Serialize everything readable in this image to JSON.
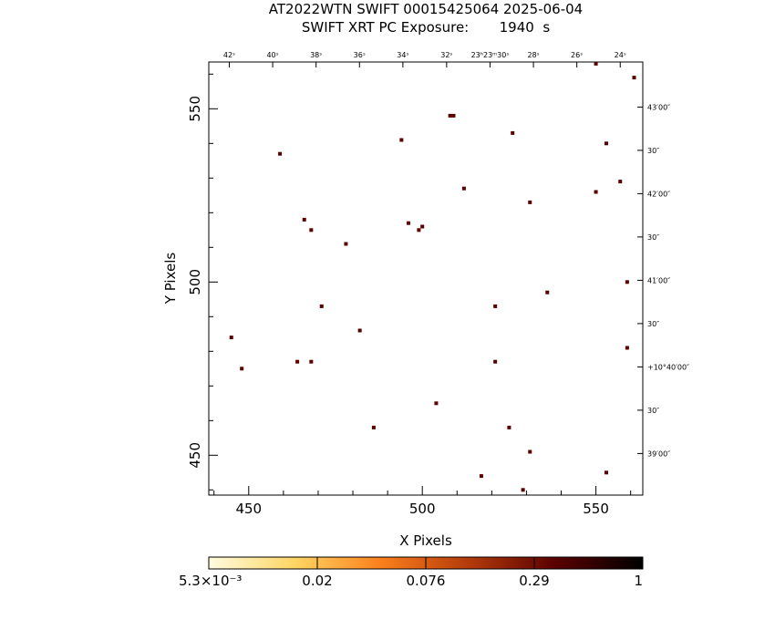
{
  "chart_data": {
    "type": "scatter",
    "title": "AT2022WTN SWIFT 00015425064 2025-06-04",
    "subtitle": "SWIFT XRT PC Exposure:       1940  s",
    "xlabel": "X Pixels",
    "ylabel": "Y Pixels",
    "xlim": [
      438.5,
      563.5
    ],
    "ylim": [
      438.5,
      563.5
    ],
    "x_ticks": [
      450,
      500,
      550
    ],
    "y_ticks": [
      450,
      500,
      550
    ],
    "x_tick_labels": [
      "450",
      "500",
      "550"
    ],
    "y_tick_labels": [
      "450",
      "500",
      "550"
    ],
    "ra_labels": [
      {
        "x": 444.4,
        "label": "42ˢ"
      },
      {
        "x": 456.9,
        "label": "40ˢ"
      },
      {
        "x": 469.4,
        "label": "38ˢ"
      },
      {
        "x": 481.9,
        "label": "36ˢ"
      },
      {
        "x": 494.4,
        "label": "34ˢ"
      },
      {
        "x": 507.0,
        "label": "32ˢ"
      },
      {
        "x": 519.5,
        "label": "23ʰ23ᵐ30ˢ"
      },
      {
        "x": 532.0,
        "label": "28ˢ"
      },
      {
        "x": 544.5,
        "label": "26ˢ"
      },
      {
        "x": 557.0,
        "label": "24ˢ"
      }
    ],
    "dec_labels": [
      {
        "y": 550.5,
        "label": "43′00″"
      },
      {
        "y": 538.0,
        "label": "30″"
      },
      {
        "y": 525.5,
        "label": "42′00″"
      },
      {
        "y": 513.0,
        "label": "30″"
      },
      {
        "y": 500.5,
        "label": "41′00″"
      },
      {
        "y": 488.0,
        "label": "30″"
      },
      {
        "y": 475.5,
        "label": "+10°40′00″"
      },
      {
        "y": 463.0,
        "label": "30″"
      },
      {
        "y": 450.5,
        "label": "39′00″"
      }
    ],
    "points": [
      {
        "x": 445,
        "y": 484
      },
      {
        "x": 448,
        "y": 475
      },
      {
        "x": 459,
        "y": 537
      },
      {
        "x": 464,
        "y": 477
      },
      {
        "x": 466,
        "y": 518
      },
      {
        "x": 468,
        "y": 515
      },
      {
        "x": 468,
        "y": 477
      },
      {
        "x": 471,
        "y": 493
      },
      {
        "x": 478,
        "y": 511
      },
      {
        "x": 482,
        "y": 486
      },
      {
        "x": 486,
        "y": 458
      },
      {
        "x": 494,
        "y": 541
      },
      {
        "x": 496,
        "y": 517
      },
      {
        "x": 499,
        "y": 515
      },
      {
        "x": 500,
        "y": 516
      },
      {
        "x": 504,
        "y": 465
      },
      {
        "x": 508,
        "y": 548
      },
      {
        "x": 509,
        "y": 548
      },
      {
        "x": 512,
        "y": 527
      },
      {
        "x": 517,
        "y": 444
      },
      {
        "x": 521,
        "y": 493
      },
      {
        "x": 521,
        "y": 477
      },
      {
        "x": 525,
        "y": 458
      },
      {
        "x": 526,
        "y": 543
      },
      {
        "x": 529,
        "y": 440
      },
      {
        "x": 531,
        "y": 523
      },
      {
        "x": 531,
        "y": 451
      },
      {
        "x": 536,
        "y": 497
      },
      {
        "x": 550,
        "y": 526
      },
      {
        "x": 550,
        "y": 563
      },
      {
        "x": 553,
        "y": 540
      },
      {
        "x": 553,
        "y": 445
      },
      {
        "x": 557,
        "y": 529
      },
      {
        "x": 559,
        "y": 500
      },
      {
        "x": 559,
        "y": 481
      },
      {
        "x": 561,
        "y": 559
      }
    ],
    "point_color": "#5a0000",
    "colorbar": {
      "colors": [
        "#fffbe0",
        "#fed563",
        "#fb7e1c",
        "#b33a0a",
        "#5a0000",
        "#000000"
      ],
      "tick_labels": [
        "5.3×10⁻³",
        "0.02",
        "0.076",
        "0.29",
        "1"
      ]
    }
  }
}
